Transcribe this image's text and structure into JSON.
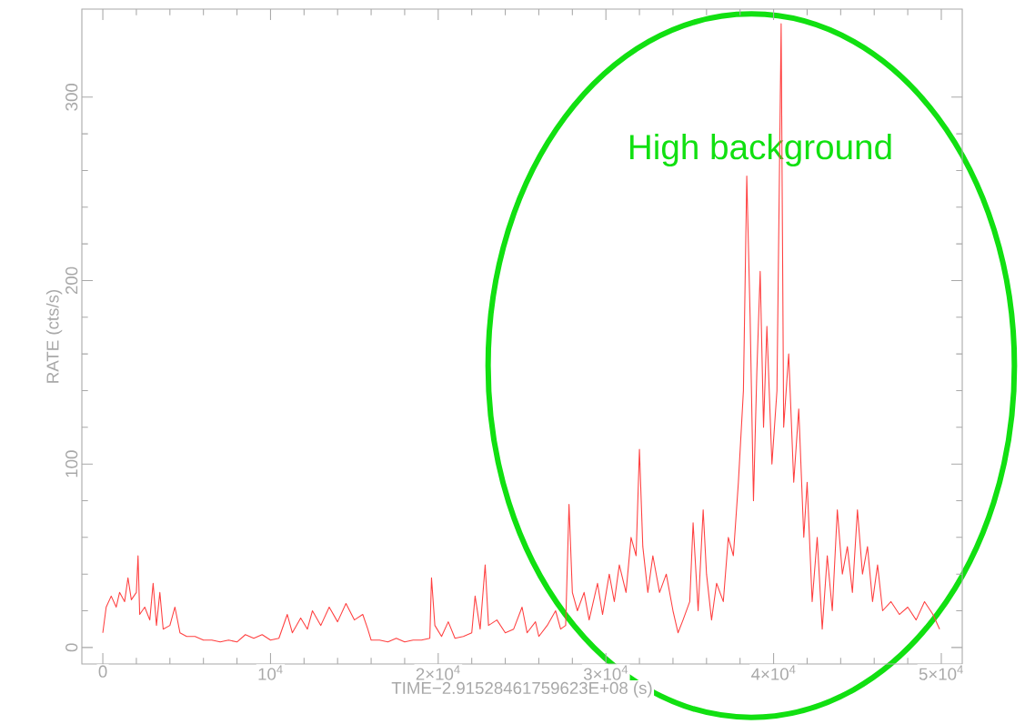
{
  "chart_data": {
    "type": "line",
    "xlabel": "TIME−2.91528461759623E+08 (s)",
    "ylabel": "RATE (cts/s)",
    "annotations": [
      "High background"
    ],
    "color": "#ff4040",
    "xlim": [
      -1250,
      51250
    ],
    "ylim": [
      -9,
      348
    ],
    "xticks": [
      0,
      {
        "value": 10000,
        "label": "10$^{4}$"
      },
      {
        "value": 20000,
        "label": "2×10$^{4}$"
      },
      {
        "value": 30000,
        "label": "3×10$^{4}$"
      },
      {
        "value": 40000,
        "label": "4×10$^{4}$"
      },
      {
        "value": 50000,
        "label": "5×10$^{4}$"
      }
    ],
    "yticks": [
      0,
      100,
      200,
      300
    ],
    "x": [
      0,
      200,
      500,
      800,
      1000,
      1300,
      1500,
      1700,
      2000,
      2100,
      2200,
      2500,
      2800,
      3000,
      3200,
      3400,
      3600,
      4000,
      4300,
      4600,
      5000,
      5500,
      6000,
      6500,
      7000,
      7500,
      8000,
      8500,
      9000,
      9500,
      10000,
      10500,
      11000,
      11300,
      11800,
      12200,
      12500,
      13000,
      13500,
      14000,
      14500,
      15000,
      15500,
      15800,
      16000,
      16500,
      17000,
      17500,
      18000,
      18500,
      19000,
      19500,
      19600,
      19800,
      20200,
      20600,
      21000,
      21500,
      22000,
      22200,
      22500,
      22800,
      23000,
      23500,
      24000,
      24500,
      25000,
      25300,
      25800,
      26000,
      26500,
      27000,
      27300,
      27600,
      27800,
      28000,
      28300,
      28700,
      29000,
      29500,
      29800,
      30200,
      30500,
      30800,
      31200,
      31500,
      31800,
      32000,
      32200,
      32500,
      32800,
      33200,
      33600,
      34000,
      34300,
      34600,
      35000,
      35200,
      35500,
      35800,
      36000,
      36300,
      36600,
      37000,
      37300,
      37600,
      37900,
      38200,
      38400,
      38600,
      38800,
      39000,
      39200,
      39400,
      39600,
      39900,
      40200,
      40400,
      40450,
      40600,
      40900,
      41200,
      41500,
      41800,
      42000,
      42300,
      42600,
      42900,
      43200,
      43500,
      43800,
      44100,
      44400,
      44700,
      45000,
      45300,
      45600,
      45900,
      46200,
      46500,
      47000,
      47500,
      48000,
      48500,
      49000,
      49500,
      49900
    ],
    "values": [
      8,
      22,
      28,
      22,
      30,
      25,
      38,
      26,
      30,
      50,
      18,
      22,
      15,
      35,
      12,
      30,
      10,
      12,
      22,
      8,
      6,
      6,
      4,
      4,
      3,
      4,
      3,
      7,
      5,
      7,
      4,
      5,
      18,
      8,
      16,
      10,
      20,
      12,
      22,
      14,
      24,
      15,
      18,
      10,
      4,
      4,
      3,
      5,
      3,
      4,
      4,
      5,
      38,
      12,
      6,
      14,
      5,
      6,
      8,
      28,
      10,
      45,
      12,
      15,
      8,
      10,
      22,
      8,
      14,
      6,
      12,
      20,
      10,
      12,
      78,
      30,
      20,
      30,
      15,
      35,
      18,
      40,
      25,
      45,
      30,
      60,
      50,
      108,
      55,
      30,
      50,
      30,
      40,
      20,
      8,
      15,
      25,
      68,
      20,
      75,
      40,
      15,
      35,
      25,
      60,
      50,
      90,
      140,
      257,
      180,
      80,
      150,
      205,
      120,
      175,
      100,
      140,
      300,
      340,
      120,
      160,
      90,
      130,
      60,
      90,
      25,
      60,
      10,
      50,
      20,
      75,
      40,
      55,
      30,
      75,
      40,
      55,
      25,
      45,
      20,
      25,
      18,
      22,
      15,
      25,
      18,
      10
    ]
  }
}
